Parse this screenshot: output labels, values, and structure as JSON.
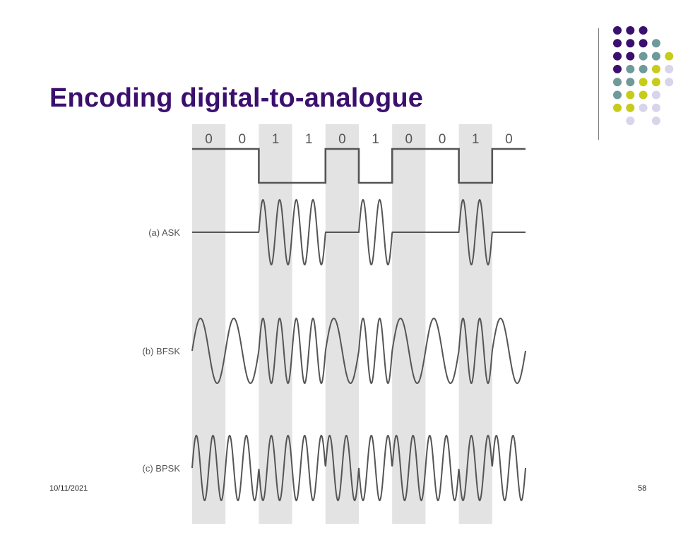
{
  "slide": {
    "title": "Encoding digital-to-analogue",
    "date": "10/11/2021",
    "page_number": "58"
  },
  "diagram": {
    "bits": [
      "0",
      "0",
      "1",
      "1",
      "0",
      "1",
      "0",
      "0",
      "1",
      "0"
    ],
    "rows": [
      {
        "key": "ask",
        "label": "(a) ASK"
      },
      {
        "key": "bfsk",
        "label": "(b) BFSK"
      },
      {
        "key": "bpsk",
        "label": "(c) BPSK"
      }
    ],
    "colors": {
      "stripe": "#e3e3e3",
      "wave": "#555555"
    }
  },
  "logo": {
    "colors": {
      "purple": "#3b0f6e",
      "teal": "#6f9a9a",
      "lime": "#c7cc1a",
      "lavender": "#d8d4ec"
    }
  }
}
